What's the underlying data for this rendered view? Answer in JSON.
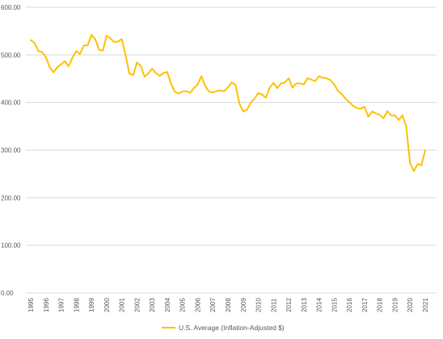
{
  "chart_data": {
    "type": "line",
    "title": "",
    "xlabel": "",
    "ylabel": "",
    "ylim": [
      0,
      600
    ],
    "y_ticks": [
      "0.00",
      "100.00",
      "200.00",
      "300.00",
      "400.00",
      "500.00",
      "600.00"
    ],
    "x_ticks": [
      "1995",
      "1996",
      "1997",
      "1998",
      "1999",
      "2000",
      "2001",
      "2002",
      "2003",
      "2004",
      "2005",
      "2006",
      "2007",
      "2008",
      "2009",
      "2010",
      "2011",
      "2012",
      "2013",
      "2014",
      "2015",
      "2016",
      "2017",
      "2018",
      "2019",
      "2020",
      "2021"
    ],
    "grid": "horizontal",
    "legend_position": "bottom",
    "series": [
      {
        "name": "U.S. Average (Inflation-Adjusted $)",
        "color": "#FFC000",
        "x": [
          1995.0,
          1995.25,
          1995.5,
          1995.75,
          1996.0,
          1996.25,
          1996.5,
          1996.75,
          1997.0,
          1997.25,
          1997.5,
          1997.75,
          1998.0,
          1998.25,
          1998.5,
          1998.75,
          1999.0,
          1999.25,
          1999.5,
          1999.75,
          2000.0,
          2000.25,
          2000.5,
          2000.75,
          2001.0,
          2001.25,
          2001.5,
          2001.75,
          2002.0,
          2002.25,
          2002.5,
          2002.75,
          2003.0,
          2003.25,
          2003.5,
          2003.75,
          2004.0,
          2004.25,
          2004.5,
          2004.75,
          2005.0,
          2005.25,
          2005.5,
          2005.75,
          2006.0,
          2006.25,
          2006.5,
          2006.75,
          2007.0,
          2007.25,
          2007.5,
          2007.75,
          2008.0,
          2008.25,
          2008.5,
          2008.75,
          2009.0,
          2009.25,
          2009.5,
          2009.75,
          2010.0,
          2010.25,
          2010.5,
          2010.75,
          2011.0,
          2011.25,
          2011.5,
          2011.75,
          2012.0,
          2012.25,
          2012.5,
          2012.75,
          2013.0,
          2013.25,
          2013.5,
          2013.75,
          2014.0,
          2014.25,
          2014.5,
          2014.75,
          2015.0,
          2015.25,
          2015.5,
          2015.75,
          2016.0,
          2016.25,
          2016.5,
          2016.75,
          2017.0,
          2017.25,
          2017.5,
          2017.75,
          2018.0,
          2018.25,
          2018.5,
          2018.75,
          2019.0,
          2019.25,
          2019.5,
          2019.75,
          2020.0,
          2020.25,
          2020.5,
          2020.75,
          2021.0
        ],
        "values": [
          531,
          525,
          508,
          506,
          495,
          474,
          463,
          474,
          480,
          487,
          476,
          494,
          508,
          502,
          520,
          520,
          542,
          533,
          511,
          509,
          540,
          535,
          527,
          528,
          533,
          500,
          461,
          457,
          484,
          477,
          454,
          461,
          471,
          462,
          456,
          462,
          464,
          439,
          422,
          419,
          423,
          424,
          420,
          430,
          438,
          455,
          435,
          423,
          421,
          424,
          425,
          424,
          432,
          442,
          437,
          398,
          381,
          385,
          400,
          408,
          420,
          417,
          410,
          431,
          441,
          430,
          440,
          442,
          451,
          431,
          440,
          440,
          438,
          451,
          448,
          445,
          455,
          452,
          451,
          447,
          438,
          424,
          418,
          408,
          401,
          393,
          388,
          387,
          391,
          370,
          381,
          377,
          374,
          367,
          382,
          373,
          373,
          363,
          373,
          349,
          273,
          256,
          271,
          268,
          300
        ]
      }
    ]
  }
}
